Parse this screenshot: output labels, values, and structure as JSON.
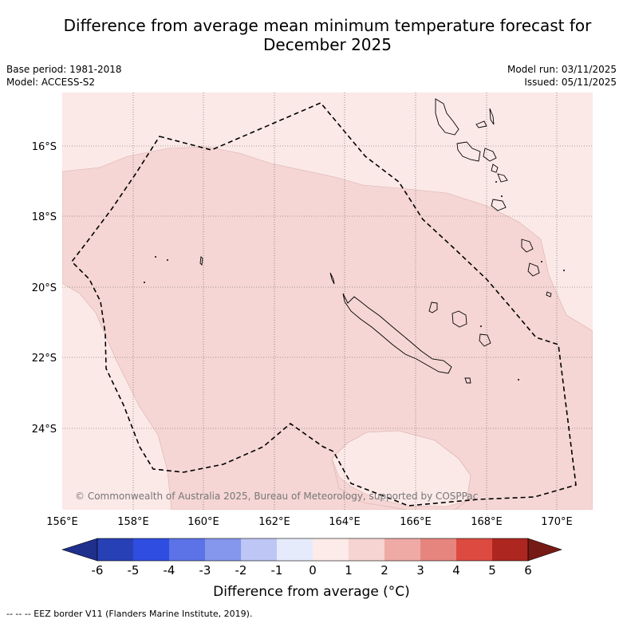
{
  "title": {
    "line1": "Difference from average mean minimum temperature forecast for",
    "line2": "December 2025"
  },
  "meta": {
    "base_period": "Base period: 1981-2018",
    "model": "Model: ACCESS-S2",
    "model_run": "Model run: 03/11/2025",
    "issued": "Issued: 05/11/2025"
  },
  "map": {
    "lon_ticks": [
      "156°E",
      "158°E",
      "160°E",
      "162°E",
      "164°E",
      "166°E",
      "168°E",
      "170°E"
    ],
    "lat_ticks": [
      "16°S",
      "18°S",
      "20°S",
      "22°S",
      "24°S"
    ],
    "copyright": "© Commonwealth of Australia 2025, Bureau of Meteorology, supported by COSPPac",
    "colors": {
      "warm_0_1": "#fbe9e7",
      "warm_1_2": "#f5d6d4",
      "contour": "#d9b0ae"
    }
  },
  "colorbar": {
    "ticks": [
      "-6",
      "-5",
      "-4",
      "-3",
      "-2",
      "-1",
      "0",
      "1",
      "2",
      "3",
      "4",
      "5",
      "6"
    ],
    "colors": [
      "#1f2f8c",
      "#2740b5",
      "#2f4de0",
      "#5b73e6",
      "#8497ec",
      "#bdc6f4",
      "#e6ebfb",
      "#fcebe8",
      "#f6d4d1",
      "#efaaa5",
      "#e6857e",
      "#dc4a40",
      "#ad2620",
      "#761a16"
    ],
    "label": "Difference from average (°C)"
  },
  "legend": {
    "eez": "--  --  -- EEZ border V11 (Flanders Marine Institute, 2019)."
  }
}
